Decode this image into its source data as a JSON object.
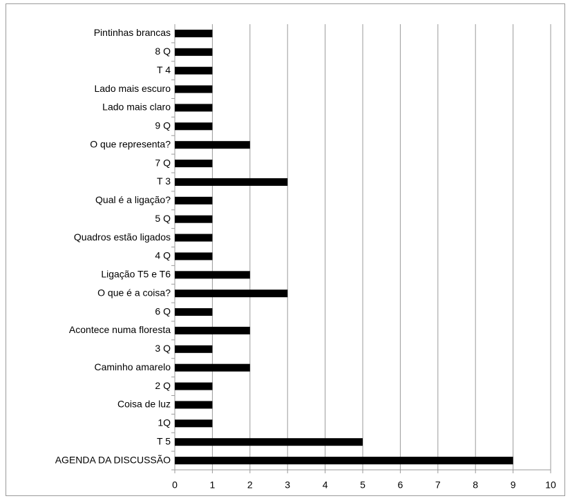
{
  "chart_data": {
    "type": "bar",
    "orientation": "horizontal",
    "categories": [
      "AGENDA DA DISCUSSÃO",
      "T 5",
      "1Q",
      "Coisa de luz",
      "2 Q",
      "Caminho amarelo",
      "3 Q",
      "Acontece numa floresta",
      "6 Q",
      "O que é a coisa?",
      "Ligação T5 e T6",
      "4 Q",
      "Quadros estão ligados",
      "5 Q",
      "Qual é a ligação?",
      "T 3",
      "7 Q",
      "O que representa?",
      "9 Q",
      "Lado mais claro",
      "Lado mais escuro",
      "T 4",
      "8 Q",
      "Pintinhas brancas"
    ],
    "values": [
      9,
      5,
      1,
      1,
      1,
      2,
      1,
      2,
      1,
      3,
      2,
      1,
      1,
      1,
      1,
      3,
      1,
      2,
      1,
      1,
      1,
      1,
      1,
      1
    ],
    "color": "#000000",
    "xlim": [
      0,
      10
    ],
    "xticks": [
      0,
      1,
      2,
      3,
      4,
      5,
      6,
      7,
      8,
      9,
      10
    ],
    "grid": true
  }
}
